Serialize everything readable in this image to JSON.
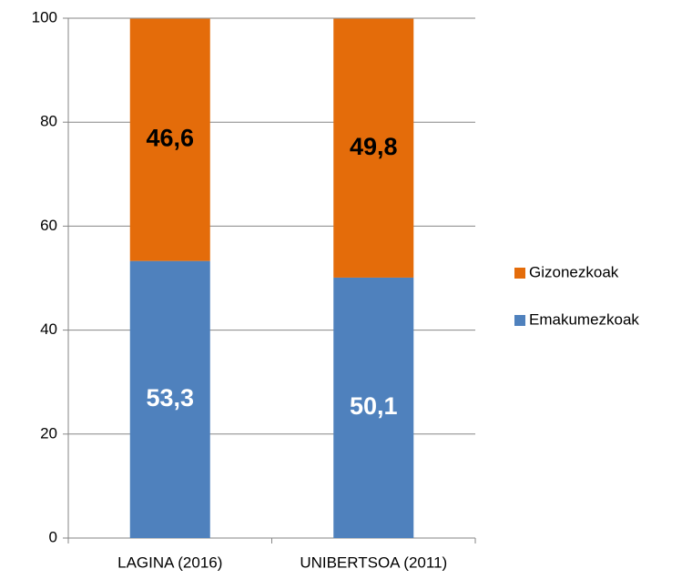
{
  "chart_data": {
    "type": "stacked_bar",
    "categories": [
      "LAGINA (2016)",
      "UNIBERTSOA (2011)"
    ],
    "series": [
      {
        "name": "Emakumezkoak",
        "color": "#4f81bd",
        "values": [
          53.3,
          50.1
        ],
        "value_labels": [
          "53,3",
          "50,1"
        ],
        "label_color": "#ffffff"
      },
      {
        "name": "Gizonezkoak",
        "color": "#e46c0a",
        "values": [
          46.6,
          49.8
        ],
        "value_labels": [
          "46,6",
          "49,8"
        ],
        "label_color": "#000000"
      }
    ],
    "ylim": [
      0,
      100
    ],
    "yticks": [
      0,
      20,
      40,
      60,
      80,
      100
    ],
    "grid": true,
    "legend": "right"
  }
}
